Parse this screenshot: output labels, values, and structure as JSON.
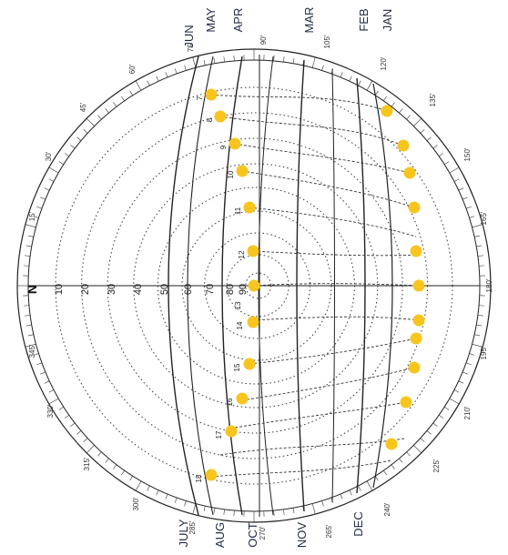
{
  "diagram": {
    "north_label": "N",
    "months_top": [
      "JUN",
      "MAY",
      "APR",
      "MAR",
      "FEB",
      "JAN"
    ],
    "months_bottom": [
      "JULY",
      "AUG",
      "OCT",
      "NOV",
      "DEC"
    ],
    "azimuth_labels": [
      "15'",
      "30'",
      "45'",
      "60'",
      "75'",
      "90'",
      "105'",
      "120'",
      "135'",
      "150'",
      "165'",
      "180'",
      "195'",
      "210'",
      "225'",
      "240'",
      "265'",
      "270'",
      "285'",
      "300'",
      "315'",
      "330'",
      "345'"
    ],
    "altitude_labels": [
      "10",
      "20",
      "30",
      "40",
      "50",
      "60",
      "70",
      "80",
      "90"
    ],
    "hour_labels_top": [
      "7",
      "8",
      "9",
      "10",
      "11",
      "12"
    ],
    "hour_labels_bottom": [
      "13",
      "14",
      "15",
      "16",
      "17",
      "18"
    ],
    "colors": {
      "sun_dot": "#f7c51e",
      "ink": "#222222",
      "month_text": "#1f2a44"
    }
  }
}
